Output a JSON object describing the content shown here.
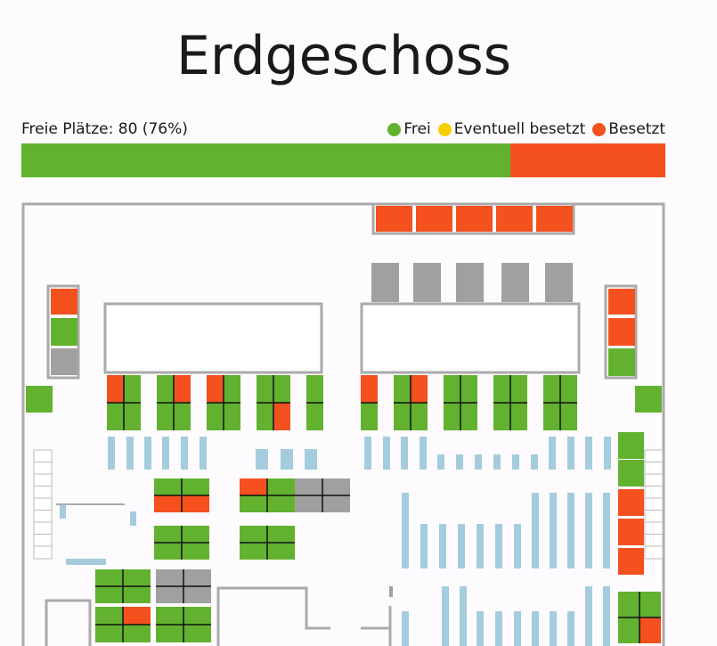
{
  "header": {
    "title": "Erdgeschoss"
  },
  "status": {
    "label": "Freie Plätze: 80 (76%)",
    "free_percent": 76,
    "free_color": "#62b22f",
    "taken_color": "#f4511e"
  },
  "legend": [
    {
      "label": "Frei",
      "color": "#62b22f"
    },
    {
      "label": "Eventuell besetzt",
      "color": "#f5d000"
    },
    {
      "label": "Besetzt",
      "color": "#f4511e"
    }
  ]
}
